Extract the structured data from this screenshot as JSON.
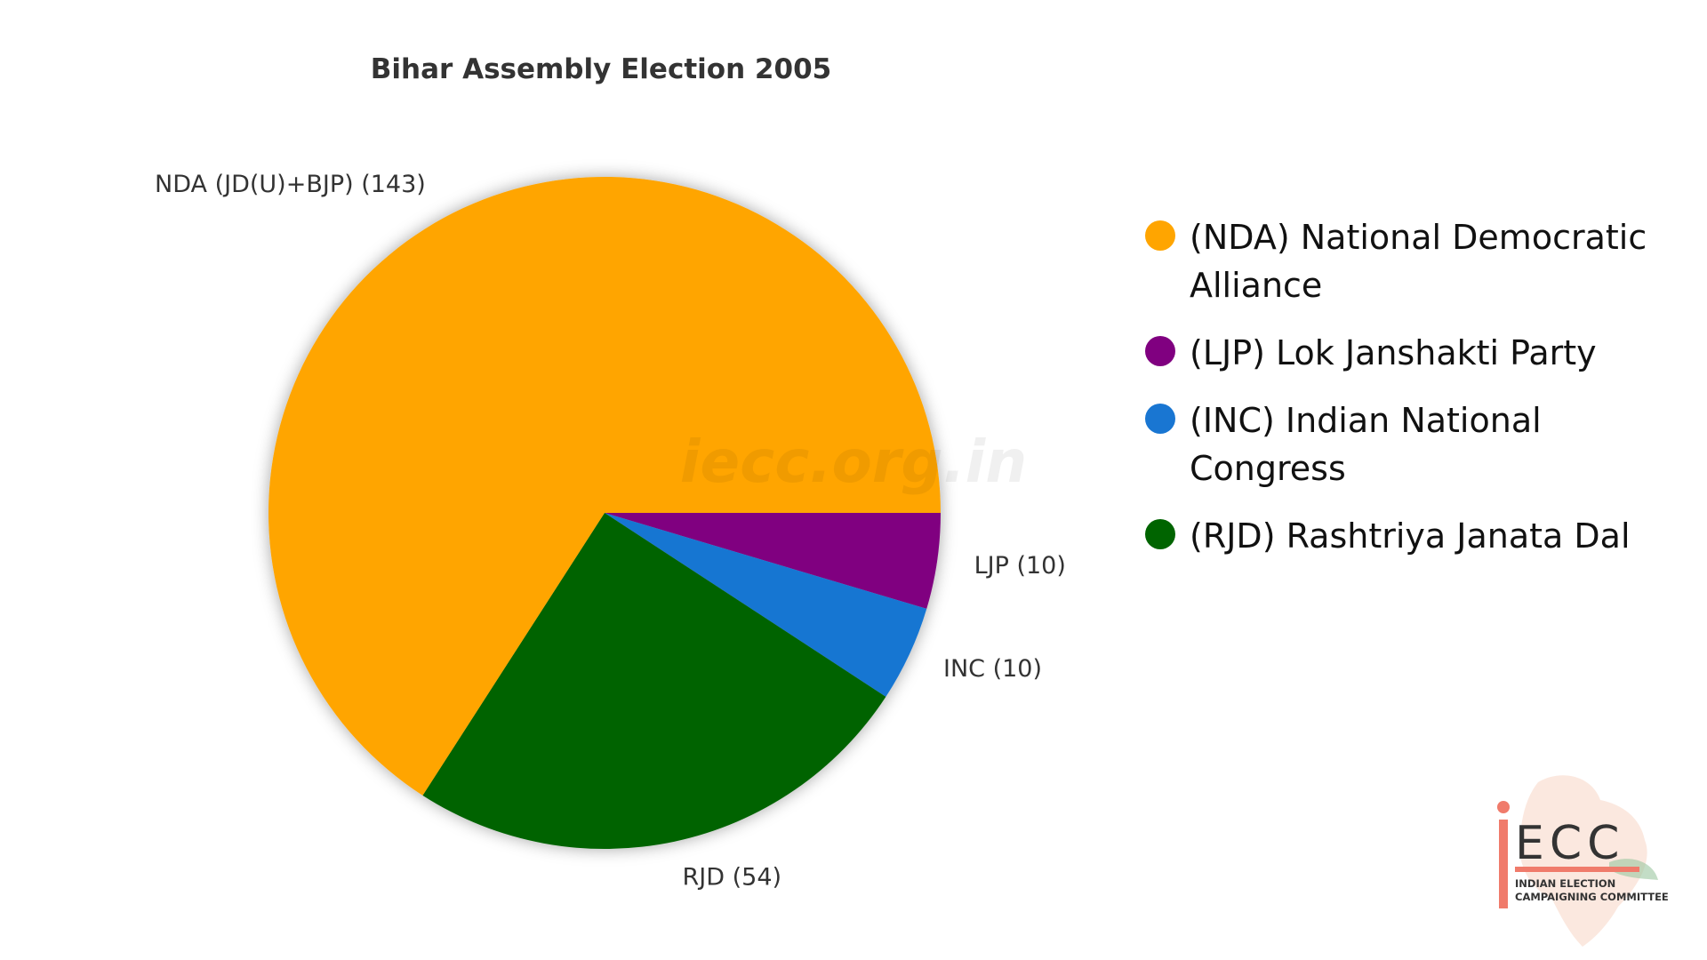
{
  "chart_data": {
    "type": "pie",
    "title": "Bihar Assembly Election 2005",
    "slices": [
      {
        "key": "NDA",
        "label": "NDA (JD(U)+BJP) (143)",
        "value": 143,
        "color": "#FFA500"
      },
      {
        "key": "LJP",
        "label": "LJP (10)",
        "value": 10,
        "color": "#800080"
      },
      {
        "key": "INC",
        "label": "INC (10)",
        "value": 10,
        "color": "#1976D2"
      },
      {
        "key": "RJD",
        "label": "RJD (54)",
        "value": 54,
        "color": "#006400"
      }
    ]
  },
  "legend": [
    {
      "text": "(NDA) National Democratic Alliance",
      "color": "#FFA500"
    },
    {
      "text": "(LJP) Lok Janshakti Party",
      "color": "#800080"
    },
    {
      "text": "(INC) Indian National Congress",
      "color": "#1976D2"
    },
    {
      "text": "(RJD) Rashtriya Janata Dal",
      "color": "#006400"
    }
  ],
  "watermark": "iecc.org.in",
  "logo": {
    "letters": "ECC",
    "line1": "INDIAN ELECTION",
    "line2": "CAMPAIGNING COMMITTEE"
  }
}
